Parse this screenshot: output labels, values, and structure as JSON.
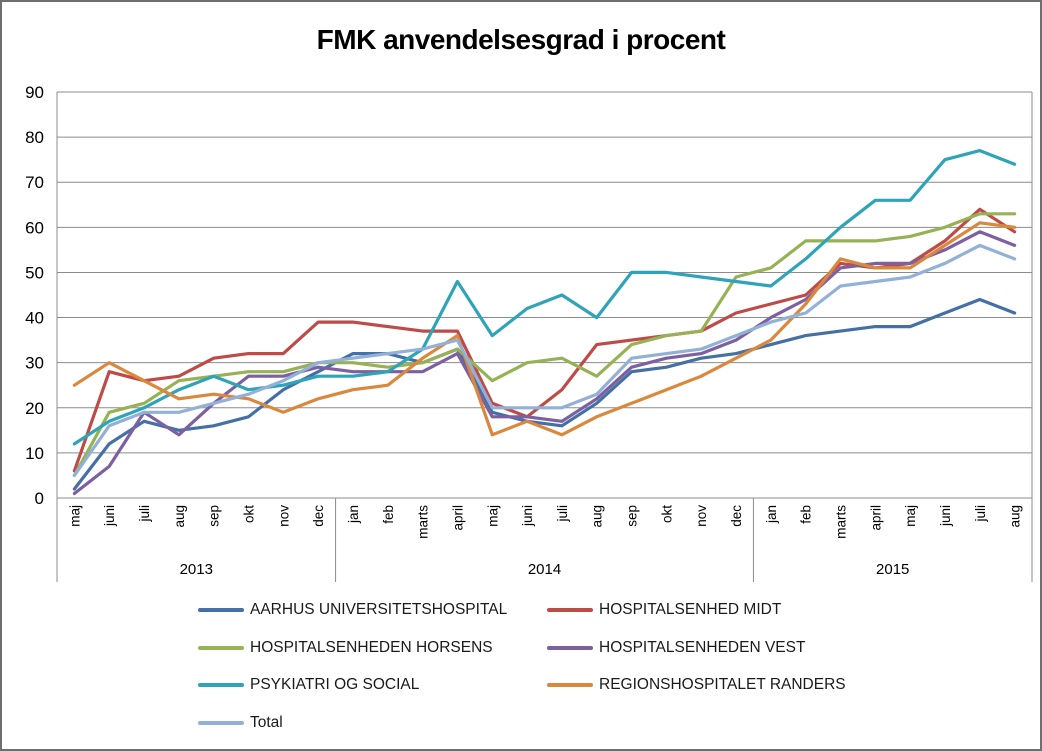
{
  "title": "FMK anvendelsesgrad i procent",
  "chart_data": {
    "type": "line",
    "title": "FMK anvendelsesgrad i procent",
    "xlabel": "",
    "ylabel": "",
    "ylim": [
      0,
      90
    ],
    "yticks": [
      0,
      10,
      20,
      30,
      40,
      50,
      60,
      70,
      80,
      90
    ],
    "grid": true,
    "legend_position": "bottom",
    "year_groups": [
      {
        "label": "2013",
        "count": 8
      },
      {
        "label": "2014",
        "count": 12
      },
      {
        "label": "2015",
        "count": 8
      }
    ],
    "categories": [
      "maj",
      "juni",
      "juli",
      "aug",
      "sep",
      "okt",
      "nov",
      "dec",
      "jan",
      "feb",
      "marts",
      "april",
      "maj",
      "juni",
      "juli",
      "aug",
      "sep",
      "okt",
      "nov",
      "dec",
      "jan",
      "feb",
      "marts",
      "april",
      "maj",
      "juni",
      "juli",
      "aug"
    ],
    "series": [
      {
        "name": "AARHUS UNIVERSITETSHOSPITAL",
        "color": "#4470A6",
        "values": [
          2,
          12,
          17,
          15,
          16,
          18,
          24,
          28,
          32,
          32,
          30,
          33,
          19,
          17,
          16,
          21,
          28,
          29,
          31,
          32,
          34,
          36,
          37,
          38,
          38,
          41,
          44,
          41
        ]
      },
      {
        "name": "HOSPITALSENHED MIDT",
        "color": "#BE4B48",
        "values": [
          6,
          28,
          26,
          27,
          31,
          32,
          32,
          39,
          39,
          38,
          37,
          37,
          21,
          18,
          24,
          34,
          35,
          36,
          37,
          41,
          43,
          45,
          52,
          51,
          52,
          57,
          64,
          59
        ]
      },
      {
        "name": "HOSPITALSENHEDEN HORSENS",
        "color": "#97B254",
        "values": [
          5,
          19,
          21,
          26,
          27,
          28,
          28,
          30,
          30,
          29,
          30,
          33,
          26,
          30,
          31,
          27,
          34,
          36,
          37,
          49,
          51,
          57,
          57,
          57,
          58,
          60,
          63,
          63
        ]
      },
      {
        "name": "HOSPITALSENHEDEN VEST",
        "color": "#7D60A0",
        "values": [
          1,
          7,
          19,
          14,
          21,
          27,
          27,
          29,
          28,
          28,
          28,
          32,
          18,
          18,
          17,
          22,
          29,
          31,
          32,
          35,
          40,
          44,
          51,
          52,
          52,
          55,
          59,
          56
        ]
      },
      {
        "name": "PSYKIATRI OG SOCIAL",
        "color": "#2FA3B8",
        "values": [
          12,
          17,
          20,
          24,
          27,
          24,
          25,
          27,
          27,
          28,
          33,
          48,
          36,
          42,
          45,
          40,
          50,
          50,
          49,
          48,
          47,
          53,
          60,
          66,
          66,
          75,
          77,
          74
        ]
      },
      {
        "name": "REGIONSHOSPITALET RANDERS",
        "color": "#D9883D",
        "values": [
          25,
          30,
          26,
          22,
          23,
          22,
          19,
          22,
          24,
          25,
          31,
          36,
          14,
          17,
          14,
          18,
          21,
          24,
          27,
          31,
          35,
          43,
          53,
          51,
          51,
          56,
          61,
          60
        ]
      },
      {
        "name": "Total",
        "color": "#93B1D7",
        "values": [
          5,
          16,
          19,
          19,
          21,
          23,
          26,
          30,
          31,
          32,
          33,
          35,
          20,
          20,
          20,
          23,
          31,
          32,
          33,
          36,
          39,
          41,
          47,
          48,
          49,
          52,
          56,
          53
        ]
      }
    ],
    "axis_color": "#8c8c8c",
    "gridline_color": "#8c8c8c"
  }
}
